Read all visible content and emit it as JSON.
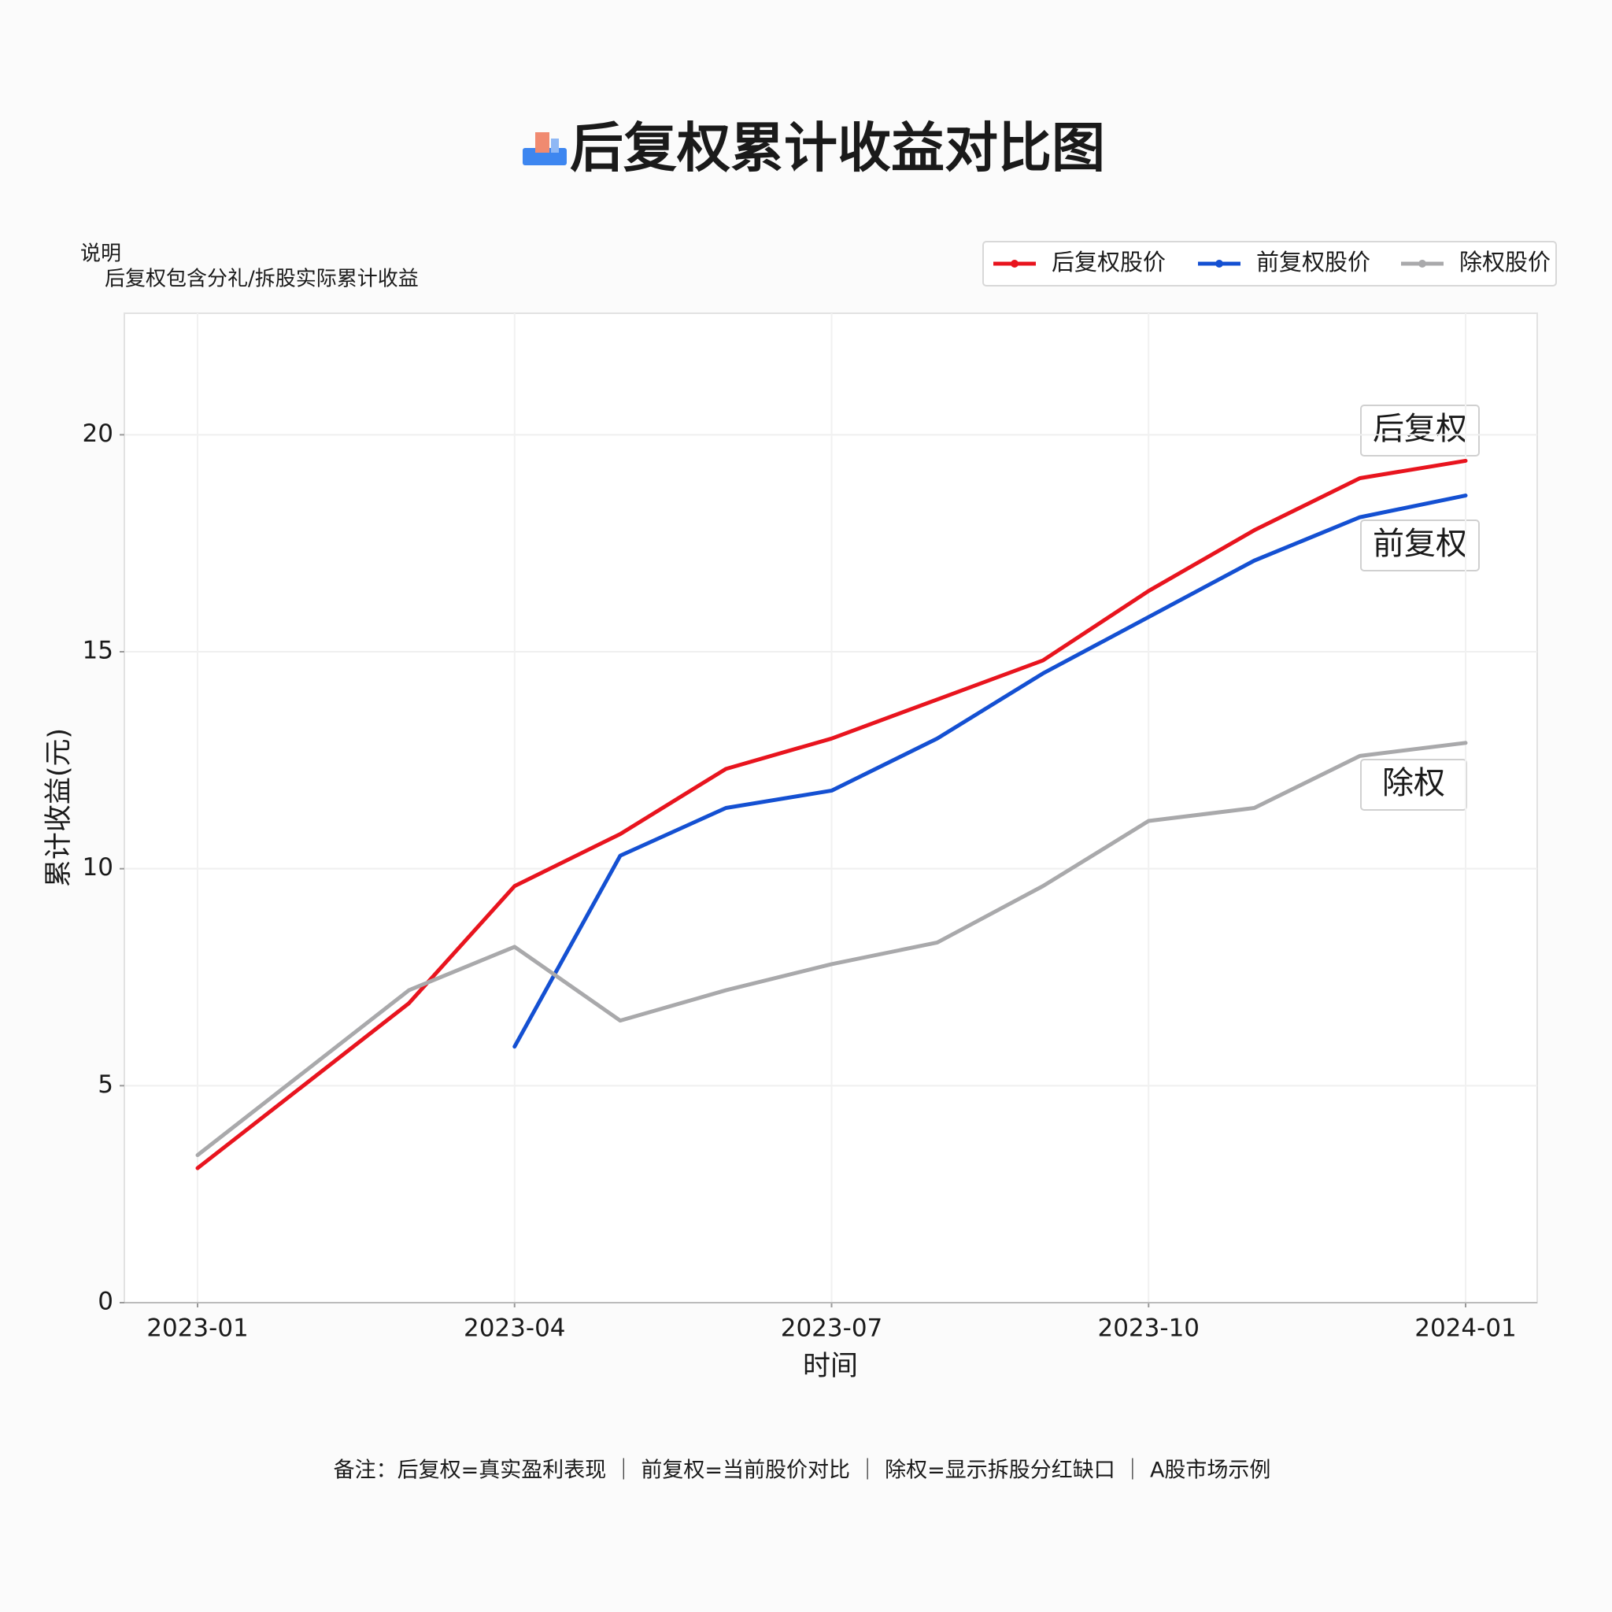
{
  "chart_data": {
    "type": "line",
    "title": "后复权累计收益对比图",
    "note_heading": "说明",
    "note_text": "后复权包含分礼/拆股实际累计收益",
    "footer": "备注：后复权=真实盈利表现 ｜ 前复权=当前股价对比 ｜ 除权=显示拆股分红缺口 ｜ A股市场示例",
    "x_label": "时间",
    "y_label": "累计收益(元)",
    "x": [
      "2023-01",
      "2023-02",
      "2023-03",
      "2023-04",
      "2023-05",
      "2023-06",
      "2023-07",
      "2023-08",
      "2023-09",
      "2023-10",
      "2023-11",
      "2023-12",
      "2024-01"
    ],
    "xticks": [
      "2023-01",
      "2023-04",
      "2023-07",
      "2023-10",
      "2024-01"
    ],
    "ylim": [
      0,
      22.8
    ],
    "yticks": [
      0,
      5,
      10,
      15,
      20
    ],
    "grid": true,
    "legend": "upper right",
    "series": [
      {
        "name": "后复权股价",
        "color": "#e8141e",
        "values": [
          3.1,
          5.0,
          6.9,
          9.6,
          10.8,
          12.3,
          13.0,
          13.9,
          14.8,
          16.4,
          17.8,
          19.0,
          19.4
        ]
      },
      {
        "name": "前复权股价",
        "color": "#1450d2",
        "values": [
          null,
          null,
          null,
          5.9,
          10.3,
          11.4,
          11.8,
          13.0,
          14.5,
          15.8,
          17.1,
          18.1,
          18.6
        ]
      },
      {
        "name": "除权股价",
        "color": "#a9a9ab",
        "values": [
          3.4,
          5.3,
          7.2,
          8.2,
          6.5,
          7.2,
          7.8,
          8.3,
          9.6,
          11.1,
          11.4,
          12.6,
          12.9
        ]
      }
    ],
    "annotations": [
      "后复权",
      "前复权",
      "除权"
    ]
  }
}
